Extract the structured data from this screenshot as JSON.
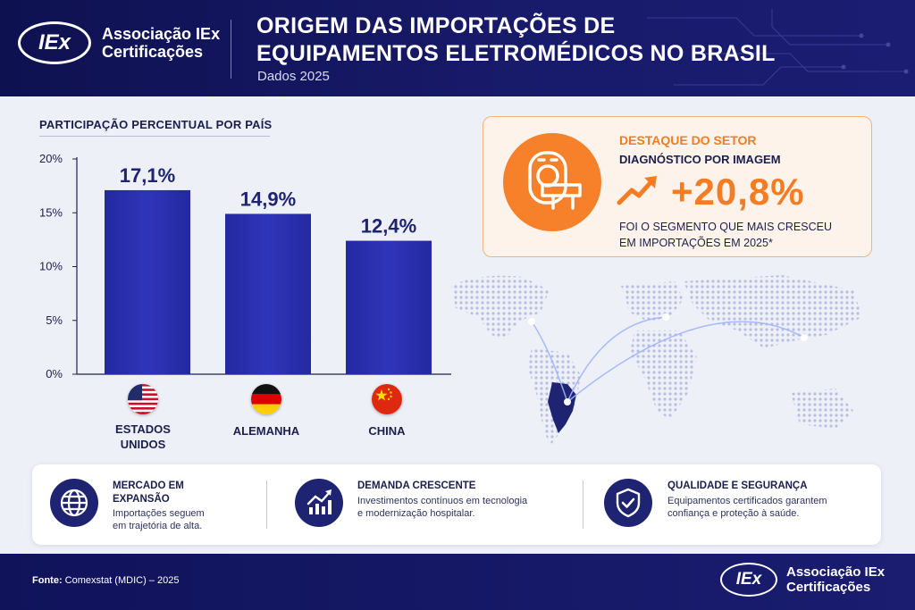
{
  "brand": {
    "logo_mark": "IEx",
    "name_line1": "Associação IEx",
    "name_line2": "Certificações"
  },
  "header": {
    "title_line1": "ORIGEM DAS IMPORTAÇÕES DE",
    "title_line2": "EQUIPAMENTOS ELETROMÉDICOS NO BRASIL",
    "subtitle": "Dados 2025"
  },
  "chart_heading": "PARTICIPAÇÃO PERCENTUAL POR PAÍS",
  "chart_data": {
    "type": "bar",
    "categories": [
      "ESTADOS UNIDOS",
      "ALEMANHA",
      "CHINA"
    ],
    "values": [
      17.1,
      14.9,
      12.4
    ],
    "value_labels": [
      "17,1%",
      "14,9%",
      "12,4%"
    ],
    "ylim": [
      0,
      20
    ],
    "yticks": [
      0,
      5,
      10,
      15,
      20
    ],
    "ytick_labels": [
      "0%",
      "5%",
      "10%",
      "15%",
      "20%"
    ],
    "bar_color": "#2f35b8",
    "grid": false
  },
  "categories_display": [
    {
      "line1": "ESTADOS",
      "line2": "UNIDOS",
      "flag": "usa-flag-icon"
    },
    {
      "line1": "ALEMANHA",
      "line2": "",
      "flag": "germany-flag-icon"
    },
    {
      "line1": "CHINA",
      "line2": "",
      "flag": "china-flag-icon"
    }
  ],
  "highlight": {
    "title": "DESTAQUE DO SETOR",
    "subtitle": "DIAGNÓSTICO POR IMAGEM",
    "value": "+20,8%",
    "desc_line1": "FOI O SEGMENTO QUE MAIS CRESCEU",
    "desc_line2": "EM IMPORTAÇÕES EM 2025*",
    "icon": "mri-scanner-icon",
    "accent": "#f57c22"
  },
  "features": [
    {
      "title_line1": "MERCADO EM",
      "title_line2": "EXPANSÃO",
      "desc_line1": "Importações seguem",
      "desc_line2": "em trajetória de alta.",
      "icon": "globe-icon"
    },
    {
      "title_line1": "DEMANDA CRESCENTE",
      "title_line2": "",
      "desc_line1": "Investimentos contínuos em tecnologia",
      "desc_line2": "e modernização hospitalar.",
      "icon": "growth-chart-icon"
    },
    {
      "title_line1": "QUALIDADE E SEGURANÇA",
      "title_line2": "",
      "desc_line1": "Equipamentos certificados garantem",
      "desc_line2": "confiança e proteção à saúde.",
      "icon": "shield-check-icon"
    }
  ],
  "footer": {
    "source_label": "Fonte:",
    "source_text": "Comexstat (MDIC) – 2025"
  },
  "colors": {
    "navy": "#1e2372",
    "header_bg": "#0e1150",
    "orange": "#f57c22"
  }
}
